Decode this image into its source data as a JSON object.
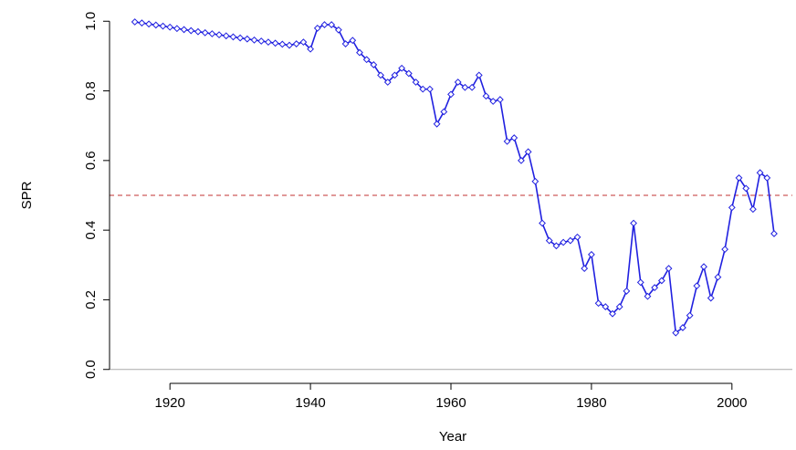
{
  "chart_data": {
    "type": "line",
    "x_label": "Year",
    "y_label": "SPR",
    "x": [
      1915,
      1916,
      1917,
      1918,
      1919,
      1920,
      1921,
      1922,
      1923,
      1924,
      1925,
      1926,
      1927,
      1928,
      1929,
      1930,
      1931,
      1932,
      1933,
      1934,
      1935,
      1936,
      1937,
      1938,
      1939,
      1940,
      1941,
      1942,
      1943,
      1944,
      1945,
      1946,
      1947,
      1948,
      1949,
      1950,
      1951,
      1952,
      1953,
      1954,
      1955,
      1956,
      1957,
      1958,
      1959,
      1960,
      1961,
      1962,
      1963,
      1964,
      1965,
      1966,
      1967,
      1968,
      1969,
      1970,
      1971,
      1972,
      1973,
      1974,
      1975,
      1976,
      1977,
      1978,
      1979,
      1980,
      1981,
      1982,
      1983,
      1984,
      1985,
      1986,
      1987,
      1988,
      1989,
      1990,
      1991,
      1992,
      1993,
      1994,
      1995,
      1996,
      1997,
      1998,
      1999,
      2000,
      2001,
      2002,
      2003,
      2004,
      2005,
      2006
    ],
    "series": [
      {
        "name": "SPR",
        "color": "#2020e0",
        "values": [
          0.998,
          0.995,
          0.992,
          0.989,
          0.986,
          0.983,
          0.979,
          0.976,
          0.973,
          0.97,
          0.967,
          0.964,
          0.961,
          0.958,
          0.955,
          0.952,
          0.949,
          0.946,
          0.943,
          0.94,
          0.937,
          0.934,
          0.931,
          0.935,
          0.94,
          0.92,
          0.98,
          0.99,
          0.99,
          0.975,
          0.935,
          0.945,
          0.91,
          0.89,
          0.875,
          0.845,
          0.825,
          0.845,
          0.865,
          0.85,
          0.825,
          0.805,
          0.805,
          0.705,
          0.74,
          0.79,
          0.825,
          0.81,
          0.81,
          0.845,
          0.785,
          0.77,
          0.775,
          0.655,
          0.665,
          0.6,
          0.625,
          0.54,
          0.42,
          0.37,
          0.355,
          0.365,
          0.37,
          0.38,
          0.29,
          0.33,
          0.19,
          0.18,
          0.16,
          0.18,
          0.225,
          0.42,
          0.25,
          0.21,
          0.235,
          0.255,
          0.29,
          0.105,
          0.12,
          0.155,
          0.24,
          0.295,
          0.205,
          0.265,
          0.345,
          0.465,
          0.55,
          0.52,
          0.46,
          0.565,
          0.55,
          0.39
        ]
      }
    ],
    "xlim": [
      1911.4,
      2008.6
    ],
    "ylim": [
      -0.04,
      1.04
    ],
    "xticks": [
      1920,
      1940,
      1960,
      1980,
      2000
    ],
    "yticks": [
      {
        "value": 0,
        "label": "0.0"
      },
      0.2,
      0.4,
      0.6,
      0.8,
      {
        "value": 1,
        "label": "1.0"
      }
    ],
    "reference_lines": [
      {
        "value": 0.5,
        "color": "#c03030",
        "dashed": true
      },
      {
        "value": 0,
        "color": "#aaaaaa",
        "dashed": false
      }
    ]
  }
}
